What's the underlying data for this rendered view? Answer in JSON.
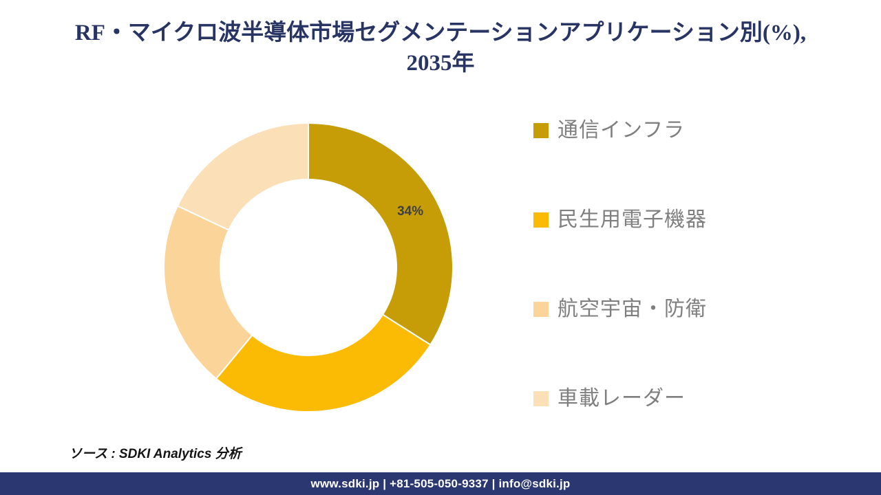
{
  "title": {
    "line1": "RF・マイクロ波半導体市場セグメンテーションアプリケーション別(%),",
    "line2": "2035年",
    "color": "#283464"
  },
  "chart_data": {
    "type": "pie",
    "subtype": "donut",
    "title": "RF・マイクロ波半導体市場セグメンテーションアプリケーション別(%), 2035年",
    "categories": [
      "通信インフラ",
      "民生用電子機器",
      "航空宇宙・防衛",
      "車載レーダー"
    ],
    "values": [
      34,
      27,
      21,
      18
    ],
    "unit": "%",
    "colors": [
      "#C69D07",
      "#FBBB04",
      "#FBD49A",
      "#FADFB7"
    ],
    "data_labels": [
      "34%",
      "",
      "",
      ""
    ],
    "data_label_color": "#404040",
    "legend_position": "right",
    "hole_ratio": 0.61,
    "rotation_start_deg": 0,
    "direction": "clockwise"
  },
  "legend": {
    "text_color": "#7F7F7F",
    "items": [
      {
        "label": "通信インフラ",
        "color": "#C69D07"
      },
      {
        "label": "民生用電子機器",
        "color": "#FBBB04"
      },
      {
        "label": "航空宇宙・防衛",
        "color": "#FBD49A"
      },
      {
        "label": "車載レーダー",
        "color": "#FADFB7"
      }
    ]
  },
  "source": {
    "text": "ソース : SDKI Analytics 分析"
  },
  "footer": {
    "text": "www.sdki.jp | +81-505-050-9337 | info@sdki.jp",
    "background": "#2B3770"
  }
}
